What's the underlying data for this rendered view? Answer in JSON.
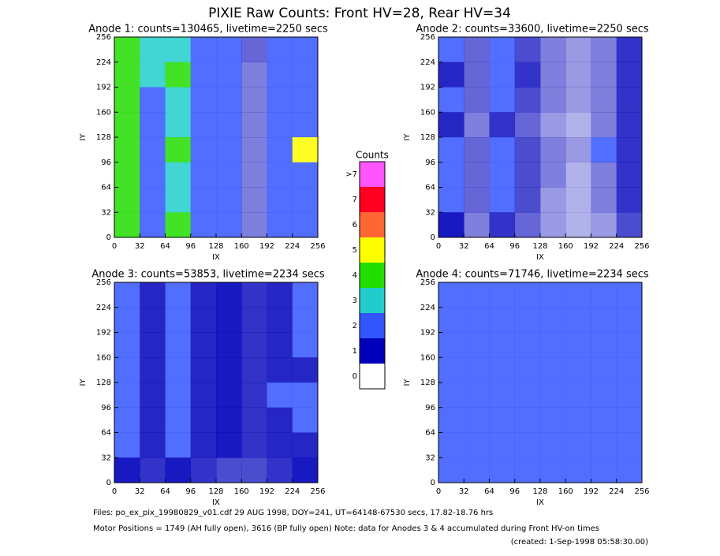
{
  "title": "PIXIE Raw Counts:  Front HV=28, Rear HV=34",
  "chart_data": [
    {
      "type": "heatmap",
      "title": "Anode 1: counts=130465, livetime=2250 secs",
      "x_label": "IX",
      "y_label": "IY",
      "xlim": [
        0,
        256
      ],
      "ylim": [
        0,
        256
      ],
      "xticks": [
        0,
        32,
        64,
        96,
        128,
        160,
        192,
        224,
        256
      ],
      "yticks": [
        0,
        32,
        64,
        96,
        128,
        160,
        192,
        224,
        256
      ],
      "values": [
        [
          4,
          2.5,
          3,
          2,
          1.5,
          0.6,
          1.5,
          2
        ],
        [
          4,
          2.5,
          3.5,
          2,
          1.5,
          0.5,
          1.5,
          2
        ],
        [
          3.5,
          2,
          2.5,
          2,
          1.5,
          0.5,
          1.5,
          1.5
        ],
        [
          4,
          2,
          3,
          2,
          1.5,
          0.5,
          1.5,
          2
        ],
        [
          3.5,
          2,
          3.5,
          2,
          1.5,
          0.5,
          2,
          5
        ],
        [
          3.5,
          2,
          2.5,
          2,
          1.5,
          0.5,
          1.5,
          2
        ],
        [
          4,
          2,
          3,
          2,
          1.5,
          0.5,
          1.5,
          2
        ],
        [
          3.5,
          2,
          3.5,
          2,
          1.5,
          0.5,
          1.5,
          2
        ]
      ]
    },
    {
      "type": "heatmap",
      "title": "Anode 2: counts=33600, livetime=2250 secs",
      "x_label": "IX",
      "y_label": "IY",
      "xlim": [
        0,
        256
      ],
      "ylim": [
        0,
        256
      ],
      "xticks": [
        0,
        32,
        64,
        96,
        128,
        160,
        192,
        224,
        256
      ],
      "yticks": [
        0,
        32,
        64,
        96,
        128,
        160,
        192,
        224,
        256
      ],
      "values": [
        [
          1.2,
          0.6,
          1.5,
          0.7,
          0.5,
          0.4,
          0.5,
          0.8
        ],
        [
          1,
          0.6,
          1.5,
          0.8,
          0.5,
          0.4,
          0.5,
          0.8
        ],
        [
          1.3,
          0.6,
          1.8,
          0.7,
          0.5,
          0.4,
          0.5,
          0.8
        ],
        [
          1,
          0.5,
          0.8,
          0.6,
          0.4,
          0.3,
          0.5,
          0.8
        ],
        [
          1.2,
          0.6,
          1.5,
          0.7,
          0.5,
          0.4,
          1.6,
          0.8
        ],
        [
          1.2,
          0.6,
          1.2,
          0.7,
          0.5,
          0.3,
          0.5,
          0.8
        ],
        [
          1.3,
          0.6,
          1.4,
          0.7,
          0.4,
          0.3,
          0.5,
          0.8
        ],
        [
          0.9,
          0.5,
          0.8,
          0.6,
          0.4,
          0.3,
          0.4,
          0.7
        ]
      ]
    },
    {
      "type": "heatmap",
      "title": "Anode 3: counts=53853, livetime=2234 secs",
      "x_label": "IX",
      "y_label": "IY",
      "xlim": [
        0,
        256
      ],
      "ylim": [
        0,
        256
      ],
      "xticks": [
        0,
        32,
        64,
        96,
        128,
        160,
        192,
        224,
        256
      ],
      "yticks": [
        0,
        32,
        64,
        96,
        128,
        160,
        192,
        224,
        256
      ],
      "values": [
        [
          1.1,
          1,
          1.3,
          1,
          0.9,
          0.8,
          1,
          1.1
        ],
        [
          1.1,
          1,
          1.2,
          1,
          0.9,
          0.8,
          1,
          1.1
        ],
        [
          1.2,
          1,
          1.2,
          1,
          0.9,
          0.8,
          1,
          1.1
        ],
        [
          1.1,
          1,
          1.1,
          1,
          0.9,
          0.8,
          1,
          1
        ],
        [
          1.2,
          1,
          1.2,
          1,
          0.9,
          0.8,
          1.5,
          1.1
        ],
        [
          1.1,
          1,
          1.2,
          1,
          0.9,
          0.8,
          1,
          1.1
        ],
        [
          1.1,
          1,
          1.2,
          1,
          0.9,
          0.8,
          1,
          1
        ],
        [
          0.9,
          0.8,
          0.9,
          0.8,
          0.7,
          0.7,
          0.8,
          0.9
        ]
      ]
    },
    {
      "type": "heatmap",
      "title": "Anode 4: counts=71746, livetime=2234 secs",
      "x_label": "IX",
      "y_label": "IY",
      "xlim": [
        0,
        256
      ],
      "ylim": [
        0,
        256
      ],
      "xticks": [
        0,
        32,
        64,
        96,
        128,
        160,
        192,
        224,
        256
      ],
      "yticks": [
        0,
        32,
        64,
        96,
        128,
        160,
        192,
        224,
        256
      ],
      "values": [
        [
          1.8,
          1.4,
          1.5,
          1.4,
          1.3,
          1.2,
          1.4,
          1.8
        ],
        [
          1.8,
          1.4,
          1.5,
          1.4,
          1.2,
          1.2,
          1.4,
          1.8
        ],
        [
          1.8,
          1.4,
          1.5,
          1.4,
          1.2,
          1.2,
          1.4,
          1.8
        ],
        [
          1.7,
          1.3,
          1.4,
          1.3,
          1.2,
          1.1,
          1.3,
          1.7
        ],
        [
          1.8,
          1.4,
          1.5,
          1.4,
          1.2,
          1.2,
          1.4,
          1.8
        ],
        [
          1.8,
          1.4,
          1.5,
          1.4,
          1.2,
          1.2,
          1.4,
          1.8
        ],
        [
          1.8,
          1.4,
          1.5,
          1.4,
          1.2,
          1.2,
          1.4,
          1.8
        ],
        [
          1.6,
          1.3,
          1.3,
          1.3,
          1.1,
          1.1,
          1.3,
          1.6
        ]
      ]
    }
  ],
  "colorbar": {
    "title": "Counts",
    "labels": [
      ">7",
      "7",
      "6",
      "5",
      "4",
      "3",
      "2",
      "1",
      "0"
    ],
    "colors": [
      "#ff55ff",
      "#ff0022",
      "#ff6633",
      "#ffff00",
      "#22dd00",
      "#22cccc",
      "#3355ff",
      "#0000bb",
      "#ffffff"
    ]
  },
  "footer": [
    "Files: po_ex_pix_19980829_v01.cdf    29 AUG 1998, DOY=241, UT=64148-67530 secs, 17.82-18.76 hrs",
    "Motor Positions = 1749 (AH fully open), 3616 (BP fully open)    Note: data for Anodes 3 & 4 accumulated during Front HV-on times",
    "(created:  1-Sep-1998 05:58:30.00)"
  ]
}
